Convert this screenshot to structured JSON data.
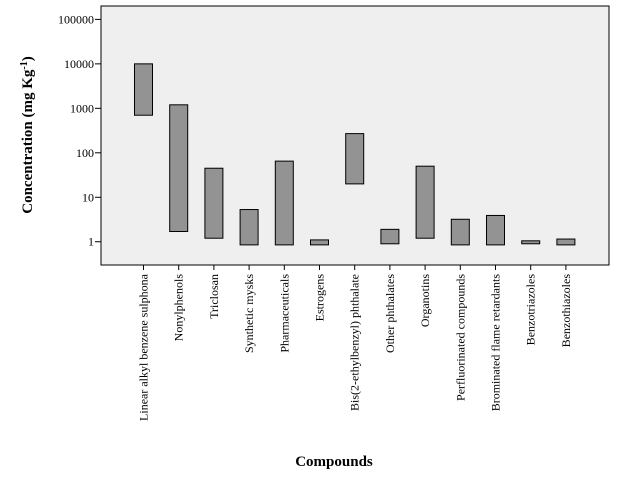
{
  "chart_data": {
    "type": "bar",
    "subtype": "floating-range",
    "title": "",
    "xlabel": "Compounds",
    "ylabel": "Concentration (mg Kg",
    "ylabel_superscript": "-1",
    "ylabel_suffix": ")",
    "yscale": "log",
    "ylim": [
      0.3,
      200000
    ],
    "yticks": [
      1,
      10,
      100,
      1000,
      10000,
      100000
    ],
    "ytick_labels": [
      "1",
      "10",
      "100",
      "1000",
      "10000",
      "100000"
    ],
    "grid": false,
    "legend": "none",
    "colors": {
      "plot_background": "#efefef",
      "bar_fill": "#939393",
      "bar_stroke": "#000000"
    },
    "categories": [
      "Linear alkyl benzene sulphona",
      "Nonylphenols",
      "Triclosan",
      "Synthetic mysks",
      "Pharmaceuticals",
      "Estrogens",
      "Bis(2-ethylbenzyl) phthalate",
      "Other phthalates",
      "Organotins",
      "Perfluorinated compounds",
      "Brominated flame retardants",
      "Benzotriazoles",
      "Benzothiazoles"
    ],
    "ranges": [
      [
        700,
        10000
      ],
      [
        1.7,
        1200
      ],
      [
        1.2,
        45
      ],
      [
        0.85,
        5.3
      ],
      [
        0.85,
        65
      ],
      [
        0.85,
        1.1
      ],
      [
        20,
        270
      ],
      [
        0.9,
        1.9
      ],
      [
        1.2,
        50
      ],
      [
        0.85,
        3.2
      ],
      [
        0.85,
        3.9
      ],
      [
        0.9,
        1.05
      ],
      [
        0.85,
        1.15
      ]
    ]
  }
}
